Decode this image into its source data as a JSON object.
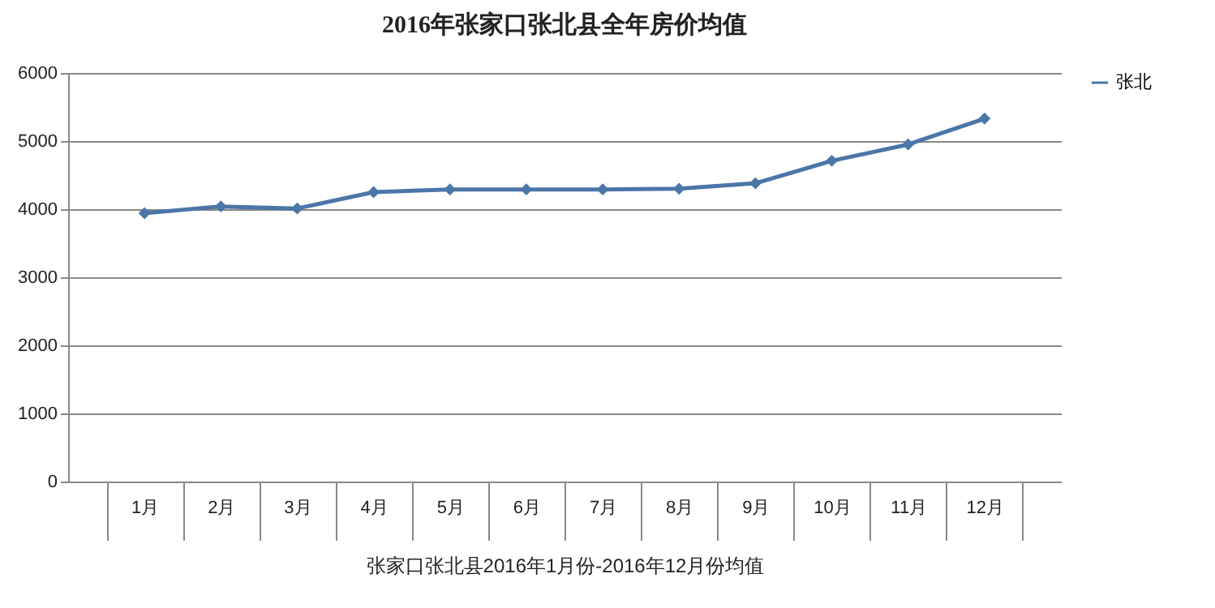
{
  "chart_data": {
    "type": "line",
    "title": "2016年张家口张北县全年房价均值",
    "xlabel": "张家口张北县2016年1月份-2016年12月份均值",
    "categories": [
      "1月",
      "2月",
      "3月",
      "4月",
      "5月",
      "6月",
      "7月",
      "8月",
      "9月",
      "10月",
      "11月",
      "12月"
    ],
    "series": [
      {
        "name": "张北",
        "color": "#4a76a8",
        "values": [
          3940,
          4040,
          4010,
          4250,
          4290,
          4290,
          4290,
          4300,
          4380,
          4710,
          4950,
          5330
        ]
      }
    ],
    "ylim": [
      0,
      6000
    ],
    "yticks": [
      0,
      1000,
      2000,
      3000,
      4000,
      5000,
      6000
    ],
    "grid": "y",
    "legend": "right",
    "marker": "diamond",
    "line_style": "solid"
  }
}
